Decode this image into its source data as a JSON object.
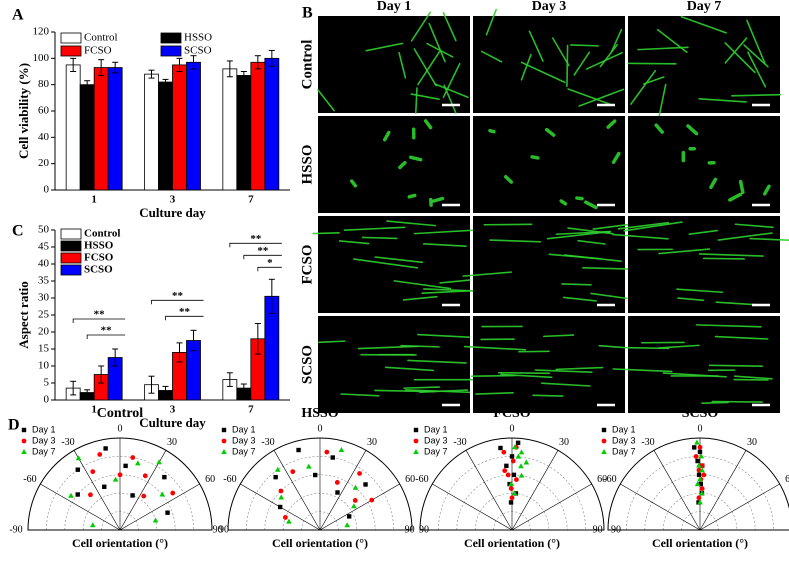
{
  "chart_data": [
    {
      "type": "bar",
      "panel": "A",
      "ylabel": "Cell viability (%)",
      "xlabel": "Culture day",
      "categories": [
        "1",
        "3",
        "7"
      ],
      "ylim": [
        0,
        120
      ],
      "yticks": [
        0,
        20,
        40,
        60,
        80,
        100,
        120
      ],
      "legend": "top",
      "series": [
        {
          "name": "Control",
          "color": "#ffffff",
          "values": [
            95,
            88,
            92
          ],
          "errors": [
            5,
            3,
            6
          ]
        },
        {
          "name": "HSSO",
          "color": "#000000",
          "values": [
            80,
            82,
            87
          ],
          "errors": [
            3,
            2,
            3
          ]
        },
        {
          "name": "FCSO",
          "color": "#ff0000",
          "values": [
            93,
            95,
            97
          ],
          "errors": [
            6,
            5,
            5
          ]
        },
        {
          "name": "SCSO",
          "color": "#0000ff",
          "values": [
            93,
            97,
            100
          ],
          "errors": [
            4,
            5,
            6
          ]
        }
      ]
    },
    {
      "type": "bar",
      "panel": "C",
      "ylabel": "Aspect ratio",
      "xlabel": "Culture day",
      "categories": [
        "1",
        "3",
        "7"
      ],
      "ylim": [
        0,
        50
      ],
      "yticks": [
        0,
        5,
        10,
        15,
        20,
        25,
        30,
        35,
        40,
        45,
        50
      ],
      "legend": "top left",
      "series": [
        {
          "name": "Control",
          "color": "#ffffff",
          "values": [
            3.5,
            4.5,
            6
          ],
          "errors": [
            2,
            2.5,
            2
          ]
        },
        {
          "name": "HSSO",
          "color": "#000000",
          "values": [
            2.2,
            2.8,
            3.5
          ],
          "errors": [
            0.8,
            1.2,
            1.2
          ]
        },
        {
          "name": "FCSO",
          "color": "#ff0000",
          "values": [
            7.5,
            14,
            18
          ],
          "errors": [
            2.5,
            2.8,
            4.5
          ]
        },
        {
          "name": "SCSO",
          "color": "#0000ff",
          "values": [
            12.5,
            17.5,
            30.5
          ],
          "errors": [
            2.5,
            3,
            5
          ]
        }
      ],
      "annotations": [
        "**",
        "**",
        "**",
        "**",
        "**",
        "**",
        "*"
      ]
    },
    {
      "type": "polar",
      "panel": "D",
      "title": "Control",
      "xlabel": "Cell orientation (°)",
      "thetaticks": [
        -90,
        -60,
        -30,
        0,
        30,
        60,
        90
      ],
      "rlim": [
        0,
        1
      ],
      "series": [
        {
          "name": "Day 1",
          "color": "#000000",
          "marker": "square",
          "theta": [
            -50,
            -35,
            -20,
            -10,
            5,
            20,
            40,
            70
          ],
          "r": [
            0.6,
            0.8,
            0.5,
            0.9,
            0.7,
            0.4,
            0.75,
            0.55
          ]
        },
        {
          "name": "Day 3",
          "color": "#ff0000",
          "marker": "circle",
          "theta": [
            -40,
            -25,
            -15,
            0,
            10,
            25,
            35,
            55
          ],
          "r": [
            0.5,
            0.7,
            0.85,
            0.6,
            0.8,
            0.65,
            0.45,
            0.7
          ]
        },
        {
          "name": "Day 7",
          "color": "#00cc00",
          "marker": "triangle",
          "theta": [
            -80,
            -55,
            -30,
            -5,
            15,
            30,
            50,
            75
          ],
          "r": [
            0.3,
            0.65,
            0.9,
            0.55,
            0.75,
            0.85,
            0.6,
            0.4
          ]
        }
      ]
    },
    {
      "type": "polar",
      "title": "HSSO",
      "xlabel": "Cell orientation (°)",
      "thetaticks": [
        -90,
        -60,
        -30,
        0,
        30,
        60,
        90
      ],
      "rlim": [
        0,
        1
      ],
      "series": [
        {
          "name": "Day 1",
          "color": "#000000",
          "marker": "square",
          "theta": [
            -60,
            -40,
            -15,
            -5,
            10,
            25,
            45,
            65
          ],
          "r": [
            0.5,
            0.75,
            0.9,
            0.6,
            0.8,
            0.45,
            0.7,
            0.35
          ]
        },
        {
          "name": "Day 3",
          "color": "#ff0000",
          "marker": "circle",
          "theta": [
            -70,
            -45,
            -25,
            5,
            20,
            35,
            50,
            60
          ],
          "r": [
            0.4,
            0.6,
            0.7,
            0.85,
            0.55,
            0.75,
            0.5,
            0.65
          ]
        },
        {
          "name": "Day 7",
          "color": "#00cc00",
          "marker": "triangle",
          "theta": [
            -75,
            -50,
            -35,
            -10,
            15,
            40,
            55,
            80
          ],
          "r": [
            0.35,
            0.55,
            0.8,
            0.7,
            0.9,
            0.6,
            0.45,
            0.3
          ]
        }
      ]
    },
    {
      "type": "polar",
      "title": "FCSO",
      "xlabel": "Cell orientation (°)",
      "thetaticks": [
        -90,
        -60,
        -30,
        0,
        30,
        60,
        90
      ],
      "rlim": [
        0,
        1
      ],
      "series": [
        {
          "name": "Day 1",
          "color": "#000000",
          "marker": "square",
          "theta": [
            -8,
            -5,
            -3,
            0,
            2,
            4,
            6,
            -2
          ],
          "r": [
            0.9,
            0.7,
            0.5,
            0.8,
            0.6,
            0.95,
            0.4,
            0.3
          ]
        },
        {
          "name": "Day 3",
          "color": "#ff0000",
          "marker": "circle",
          "theta": [
            -6,
            -4,
            -1,
            1,
            3,
            -7,
            5,
            0
          ],
          "r": [
            0.85,
            0.6,
            0.45,
            0.75,
            0.9,
            0.65,
            0.55,
            0.35
          ]
        },
        {
          "name": "Day 7",
          "color": "#00cc00",
          "marker": "triangle",
          "theta": [
            2,
            5,
            8,
            10,
            -1,
            4,
            7,
            12
          ],
          "r": [
            0.9,
            0.8,
            0.7,
            0.6,
            0.5,
            0.4,
            0.85,
            0.75
          ]
        }
      ]
    },
    {
      "type": "polar",
      "title": "SCSO",
      "xlabel": "Cell orientation (°)",
      "thetaticks": [
        -90,
        -60,
        -30,
        0,
        30,
        60,
        90
      ],
      "rlim": [
        0,
        1
      ],
      "series": [
        {
          "name": "Day 1",
          "color": "#000000",
          "marker": "square",
          "theta": [
            -4,
            -2,
            -1,
            0,
            1,
            2,
            3,
            -3
          ],
          "r": [
            0.9,
            0.75,
            0.6,
            0.85,
            0.5,
            0.7,
            0.4,
            0.3
          ]
        },
        {
          "name": "Day 3",
          "color": "#ff0000",
          "marker": "circle",
          "theta": [
            -3,
            -1,
            0,
            1,
            2,
            3,
            -2,
            4
          ],
          "r": [
            0.8,
            0.65,
            0.9,
            0.55,
            0.7,
            0.45,
            0.35,
            0.6
          ]
        },
        {
          "name": "Day 7",
          "color": "#00cc00",
          "marker": "triangle",
          "theta": [
            -2,
            -1,
            0,
            1,
            2,
            3,
            -3,
            0
          ],
          "r": [
            0.95,
            0.7,
            0.55,
            0.8,
            0.65,
            0.4,
            0.5,
            0.3
          ]
        }
      ]
    }
  ],
  "image_panel": {
    "panel": "B",
    "columns": [
      "Day 1",
      "Day 3",
      "Day 7"
    ],
    "rows": [
      "Control",
      "HSSO",
      "FCSO",
      "SCSO"
    ]
  }
}
